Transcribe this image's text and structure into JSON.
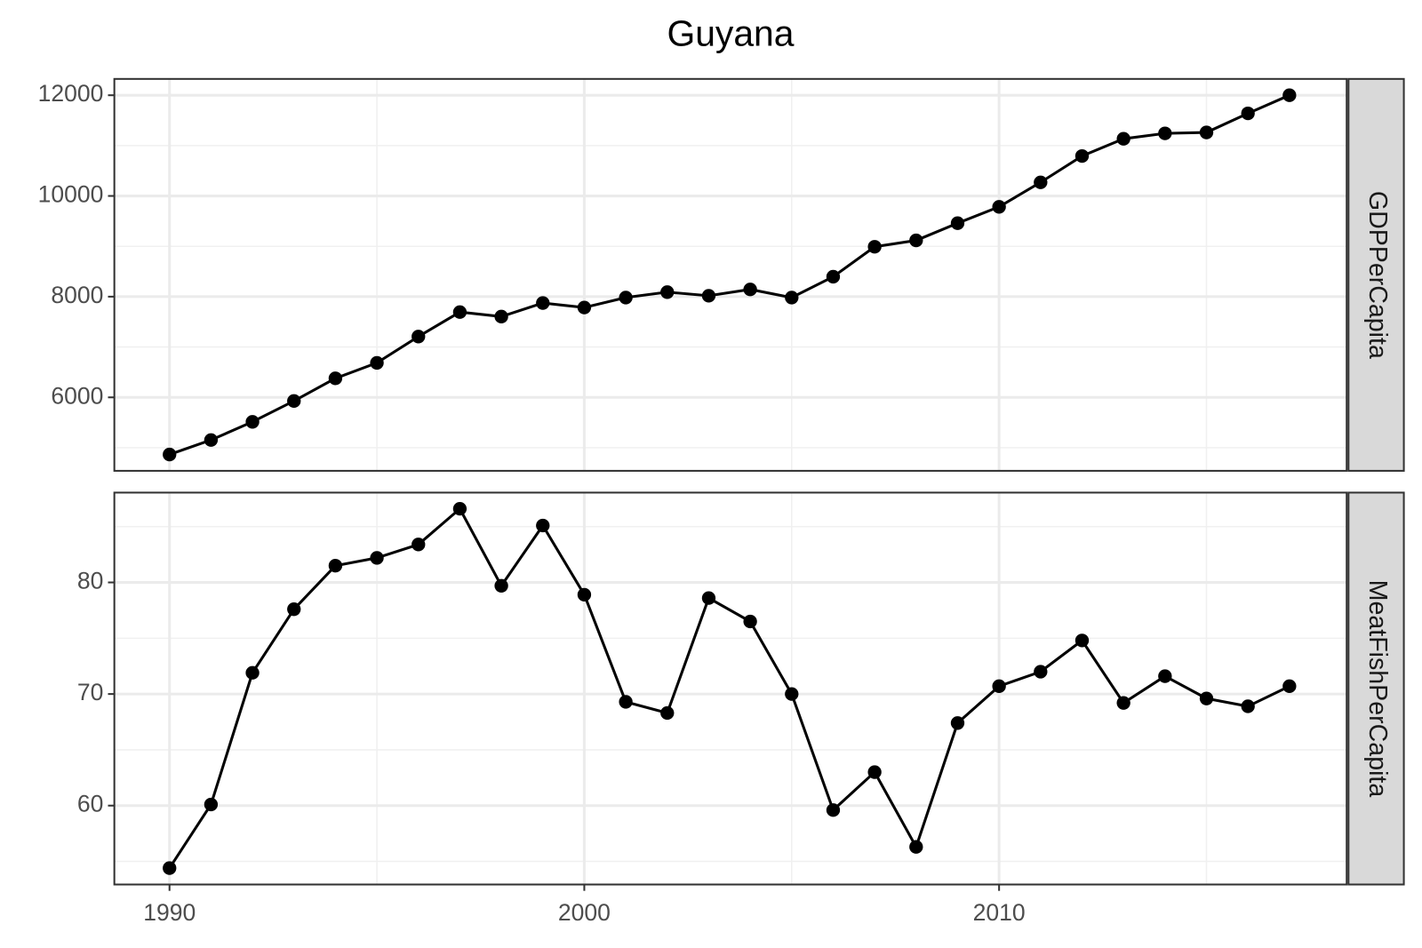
{
  "title": "Guyana",
  "chart_data": [
    {
      "type": "line",
      "panel_label": "GDPPerCapita",
      "x": [
        1990,
        1991,
        1992,
        1993,
        1994,
        1995,
        1996,
        1997,
        1998,
        1999,
        2000,
        2001,
        2002,
        2003,
        2004,
        2005,
        2006,
        2007,
        2008,
        2009,
        2010,
        2011,
        2012,
        2013,
        2014,
        2015,
        2016,
        2017
      ],
      "series": [
        {
          "name": "GDPPerCapita",
          "color": "#000000",
          "values": [
            4865,
            5153,
            5514,
            5928,
            6378,
            6685,
            7207,
            7694,
            7604,
            7874,
            7784,
            7982,
            8090,
            8018,
            8144,
            7982,
            8396,
            8991,
            9117,
            9459,
            9784,
            10270,
            10793,
            11135,
            11243,
            11261,
            11640,
            12000
          ]
        }
      ],
      "xlim": [
        1988.67,
        2018.38
      ],
      "xticks": [
        1990,
        2000,
        2010
      ],
      "xminorticks": [
        1995,
        2005,
        2015
      ],
      "ylim": [
        4541,
        12324
      ],
      "yticks": [
        6000,
        8000,
        10000,
        12000
      ],
      "yminorticks": [
        5000,
        7000,
        9000,
        11000
      ],
      "grid": true
    },
    {
      "type": "line",
      "panel_label": "MeatFishPerCapita",
      "x": [
        1990,
        1991,
        1992,
        1993,
        1994,
        1995,
        1996,
        1997,
        1998,
        1999,
        2000,
        2001,
        2002,
        2003,
        2004,
        2005,
        2006,
        2007,
        2008,
        2009,
        2010,
        2011,
        2012,
        2013,
        2014,
        2015,
        2016,
        2017
      ],
      "series": [
        {
          "name": "MeatFishPerCapita",
          "color": "#000000",
          "values": [
            54.4,
            60.1,
            71.9,
            77.6,
            81.5,
            82.2,
            83.4,
            86.6,
            79.7,
            85.1,
            78.9,
            69.3,
            68.3,
            78.6,
            76.5,
            70.0,
            59.6,
            63.0,
            56.3,
            67.4,
            70.7,
            72.0,
            74.8,
            69.2,
            71.6,
            69.6,
            68.9,
            70.7
          ]
        }
      ],
      "xlim": [
        1988.67,
        2018.38
      ],
      "xticks": [
        1990,
        2000,
        2010
      ],
      "xminorticks": [
        1995,
        2005,
        2015
      ],
      "ylim": [
        52.93,
        88.05
      ],
      "yticks": [
        60,
        70,
        80
      ],
      "yminorticks": [
        55,
        65,
        75,
        85
      ],
      "grid": true
    }
  ]
}
